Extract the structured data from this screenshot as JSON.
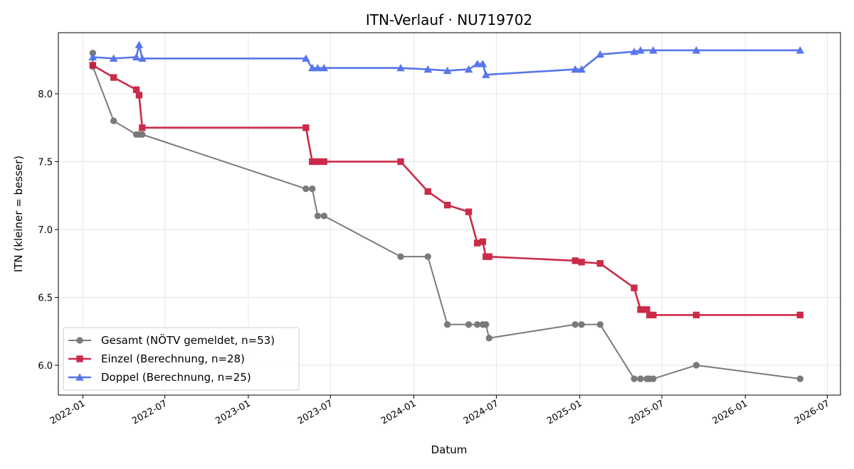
{
  "chart_data": {
    "type": "line",
    "title": "ITN-Verlauf · NU719702",
    "xlabel": "Datum",
    "ylabel": "ITN  (kleiner = besser)",
    "x_ticks": [
      "2022-01",
      "2022-07",
      "2023-01",
      "2023-07",
      "2024-01",
      "2024-07",
      "2025-01",
      "2025-07",
      "2026-01",
      "2026-07"
    ],
    "y_ticks": [
      "6.0",
      "6.5",
      "7.0",
      "7.5",
      "8.0"
    ],
    "xlim": [
      "2021-11-08",
      "2026-07-30"
    ],
    "ylim": [
      5.78,
      8.45
    ],
    "grid": true,
    "legend_position": "lower-left",
    "series": [
      {
        "name": "Gesamt (NÖTV gemeldet, n=53)",
        "color": "#555555",
        "marker": "circle",
        "points": [
          [
            "2022-01-23",
            8.3
          ],
          [
            "2022-01-23",
            8.2
          ],
          [
            "2022-03-10",
            7.8
          ],
          [
            "2022-04-29",
            7.7
          ],
          [
            "2022-05-05",
            7.7
          ],
          [
            "2022-05-12",
            7.7
          ],
          [
            "2023-05-08",
            7.3
          ],
          [
            "2023-05-22",
            7.3
          ],
          [
            "2023-06-03",
            7.1
          ],
          [
            "2023-06-17",
            7.1
          ],
          [
            "2023-12-03",
            6.8
          ],
          [
            "2024-02-01",
            6.8
          ],
          [
            "2024-03-15",
            6.3
          ],
          [
            "2024-05-01",
            6.3
          ],
          [
            "2024-05-20",
            6.3
          ],
          [
            "2024-06-01",
            6.3
          ],
          [
            "2024-06-08",
            6.3
          ],
          [
            "2024-06-15",
            6.2
          ],
          [
            "2024-12-22",
            6.3
          ],
          [
            "2025-01-05",
            6.3
          ],
          [
            "2025-02-15",
            6.3
          ],
          [
            "2025-05-01",
            5.9
          ],
          [
            "2025-05-15",
            5.9
          ],
          [
            "2025-05-29",
            5.9
          ],
          [
            "2025-06-04",
            5.9
          ],
          [
            "2025-06-12",
            5.9
          ],
          [
            "2025-09-15",
            6.0
          ],
          [
            "2026-05-02",
            5.9
          ]
        ]
      },
      {
        "name": "Einzel (Berechnung, n=28)",
        "color": "#C8203F",
        "marker": "square",
        "points": [
          [
            "2022-01-23",
            8.21
          ],
          [
            "2022-03-10",
            8.12
          ],
          [
            "2022-04-29",
            8.03
          ],
          [
            "2022-05-05",
            7.99
          ],
          [
            "2022-05-12",
            7.75
          ],
          [
            "2023-05-08",
            7.75
          ],
          [
            "2023-05-22",
            7.5
          ],
          [
            "2023-06-03",
            7.5
          ],
          [
            "2023-06-17",
            7.5
          ],
          [
            "2023-12-03",
            7.5
          ],
          [
            "2024-02-01",
            7.28
          ],
          [
            "2024-03-15",
            7.18
          ],
          [
            "2024-05-01",
            7.13
          ],
          [
            "2024-05-20",
            6.9
          ],
          [
            "2024-06-01",
            6.91
          ],
          [
            "2024-06-08",
            6.8
          ],
          [
            "2024-06-15",
            6.8
          ],
          [
            "2024-12-22",
            6.77
          ],
          [
            "2025-01-05",
            6.76
          ],
          [
            "2025-02-15",
            6.75
          ],
          [
            "2025-05-01",
            6.57
          ],
          [
            "2025-05-15",
            6.41
          ],
          [
            "2025-05-29",
            6.41
          ],
          [
            "2025-06-04",
            6.37
          ],
          [
            "2025-06-12",
            6.37
          ],
          [
            "2025-09-15",
            6.37
          ],
          [
            "2026-05-02",
            6.37
          ]
        ]
      },
      {
        "name": "Doppel (Berechnung, n=25)",
        "color": "#4F6FEB",
        "marker": "triangle",
        "points": [
          [
            "2022-01-23",
            8.27
          ],
          [
            "2022-03-10",
            8.26
          ],
          [
            "2022-04-29",
            8.27
          ],
          [
            "2022-05-05",
            8.36
          ],
          [
            "2022-05-12",
            8.26
          ],
          [
            "2023-05-08",
            8.26
          ],
          [
            "2023-05-22",
            8.19
          ],
          [
            "2023-06-03",
            8.19
          ],
          [
            "2023-06-17",
            8.19
          ],
          [
            "2023-12-03",
            8.19
          ],
          [
            "2024-02-01",
            8.18
          ],
          [
            "2024-03-15",
            8.17
          ],
          [
            "2024-05-01",
            8.18
          ],
          [
            "2024-05-20",
            8.22
          ],
          [
            "2024-06-01",
            8.22
          ],
          [
            "2024-06-08",
            8.14
          ],
          [
            "2024-12-22",
            8.18
          ],
          [
            "2025-01-05",
            8.18
          ],
          [
            "2025-02-15",
            8.29
          ],
          [
            "2025-05-01",
            8.31
          ],
          [
            "2025-05-15",
            8.32
          ],
          [
            "2025-06-12",
            8.32
          ],
          [
            "2025-09-15",
            8.32
          ],
          [
            "2026-05-02",
            8.32
          ]
        ]
      }
    ]
  }
}
